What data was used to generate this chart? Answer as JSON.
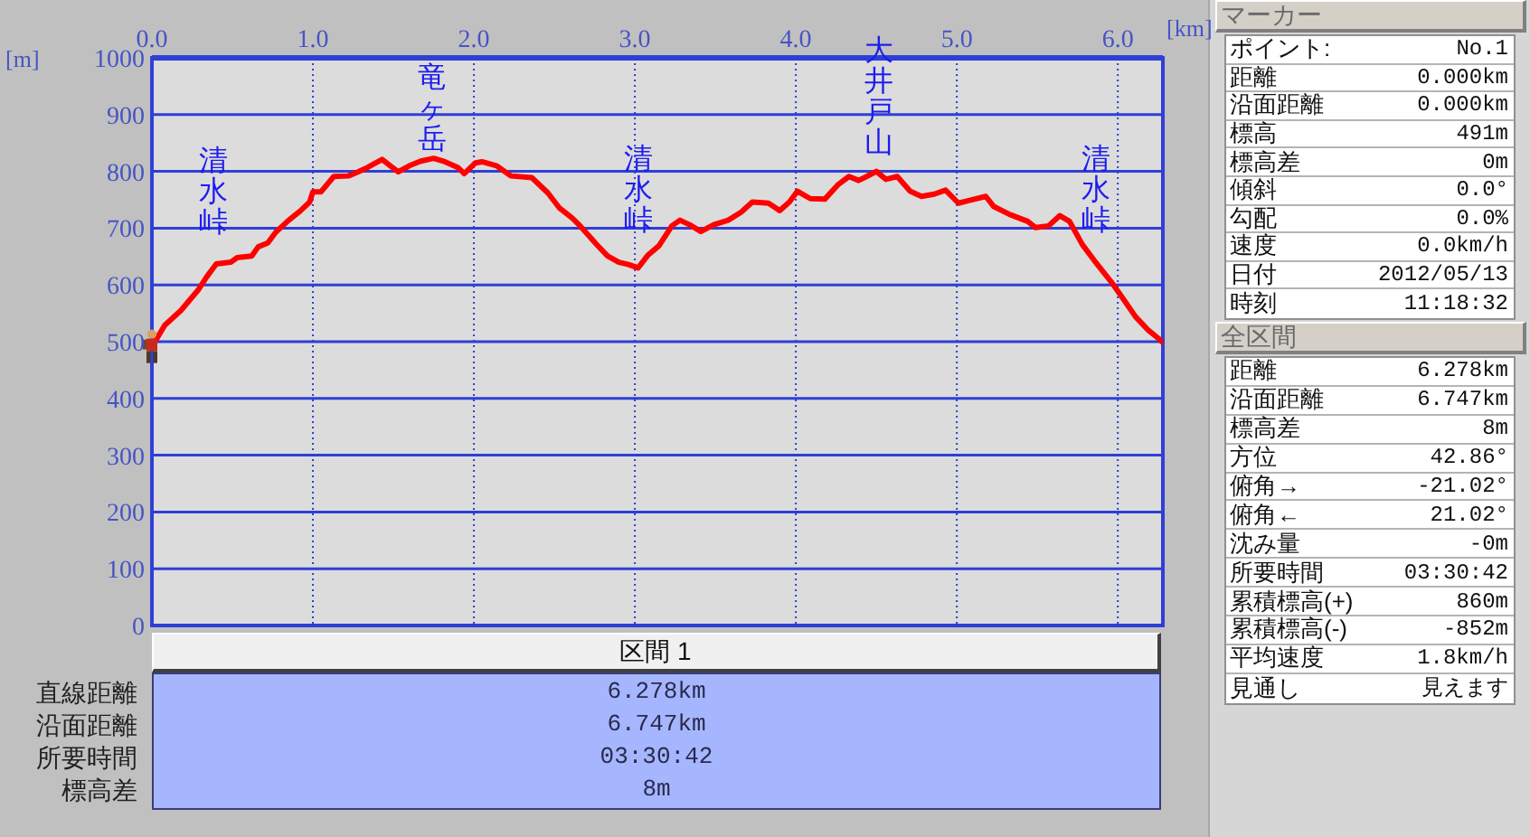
{
  "chart_data": [
    {
      "type": "line",
      "xlabel": "[km]",
      "ylabel": "[m]",
      "color": "#ff0000",
      "marker": "none",
      "grid": true,
      "xlim": [
        0,
        6.28
      ],
      "xticks": [
        {
          "value": 0,
          "label": "0.0"
        },
        {
          "value": 1,
          "label": "1.0"
        },
        {
          "value": 2,
          "label": "2.0"
        },
        {
          "value": 3,
          "label": "3.0"
        },
        {
          "value": 4,
          "label": "4.0"
        },
        {
          "value": 5,
          "label": "5.0"
        },
        {
          "value": 6,
          "label": "6.0"
        }
      ],
      "ylim": [
        0,
        1000
      ],
      "yticks": [
        0,
        100,
        200,
        300,
        400,
        500,
        600,
        700,
        800,
        900,
        1000
      ],
      "x": [
        0,
        0.08,
        0.18,
        0.29,
        0.34,
        0.4,
        0.49,
        0.53,
        0.62,
        0.66,
        0.72,
        0.77,
        0.85,
        0.92,
        0.98,
        1.0,
        1.05,
        1.13,
        1.22,
        1.28,
        1.34,
        1.43,
        1.48,
        1.53,
        1.6,
        1.67,
        1.75,
        1.82,
        1.9,
        1.94,
        2.01,
        2.05,
        2.14,
        2.23,
        2.36,
        2.46,
        2.53,
        2.61,
        2.66,
        2.76,
        2.83,
        2.9,
        2.96,
        3.02,
        3.08,
        3.15,
        3.23,
        3.28,
        3.34,
        3.41,
        3.49,
        3.58,
        3.66,
        3.73,
        3.83,
        3.9,
        3.96,
        4.01,
        4.09,
        4.18,
        4.26,
        4.33,
        4.39,
        4.44,
        4.5,
        4.56,
        4.63,
        4.71,
        4.78,
        4.86,
        4.93,
        5.01,
        5.08,
        5.18,
        5.23,
        5.33,
        5.44,
        5.49,
        5.57,
        5.64,
        5.7,
        5.78,
        5.87,
        5.96,
        6.04,
        6.11,
        6.19,
        6.26,
        6.278
      ],
      "values": [
        491,
        529,
        555,
        592,
        614,
        637,
        640,
        648,
        651,
        667,
        674,
        693,
        714,
        730,
        746,
        764,
        764,
        791,
        792,
        799,
        807,
        821,
        810,
        799,
        810,
        818,
        823,
        817,
        807,
        796,
        815,
        817,
        810,
        792,
        789,
        762,
        736,
        718,
        704,
        672,
        651,
        640,
        636,
        630,
        652,
        669,
        704,
        714,
        706,
        694,
        706,
        714,
        728,
        746,
        744,
        731,
        746,
        765,
        752,
        751,
        776,
        791,
        784,
        791,
        800,
        786,
        791,
        765,
        756,
        760,
        767,
        744,
        749,
        756,
        738,
        724,
        712,
        701,
        704,
        722,
        712,
        671,
        637,
        605,
        573,
        544,
        520,
        504,
        499
      ],
      "annotations": [
        "清水峠",
        "竜ヶ岳",
        "清水峠",
        "大井戸山",
        "清水峠"
      ]
    },
    {
      "type": "other",
      "title": "マーカー",
      "annotations": [
        "ポイント:",
        "No.1",
        "距離",
        "0.000km",
        "沿面距離",
        "0.000km",
        "標高",
        "491m",
        "標高差",
        "0m",
        "傾斜",
        "0.0°",
        "勾配",
        "0.0%",
        "速度",
        "0.0km/h",
        "日付",
        "2012/05/13",
        "時刻",
        "11:18:32"
      ]
    },
    {
      "type": "other",
      "title": "全区間",
      "annotations": [
        "距離",
        "6.278km",
        "沿面距離",
        "6.747km",
        "標高差",
        "8m",
        "方位",
        "42.86°",
        "俯角→",
        "-21.02°",
        "俯角←",
        "21.02°",
        "沈み量",
        "-0m",
        "所要時間",
        "03:30:42",
        "累積標高(+)",
        "860m",
        "累積標高(-)",
        "-852m",
        "平均速度",
        "1.8km/h",
        "見通し",
        "見えます"
      ]
    },
    {
      "type": "other",
      "title": "区間 1",
      "annotations": [
        "直線距離",
        "6.278km",
        "沿面距離",
        "6.747km",
        "所要時間",
        "03:30:42",
        "標高差",
        "8m"
      ]
    }
  ]
}
